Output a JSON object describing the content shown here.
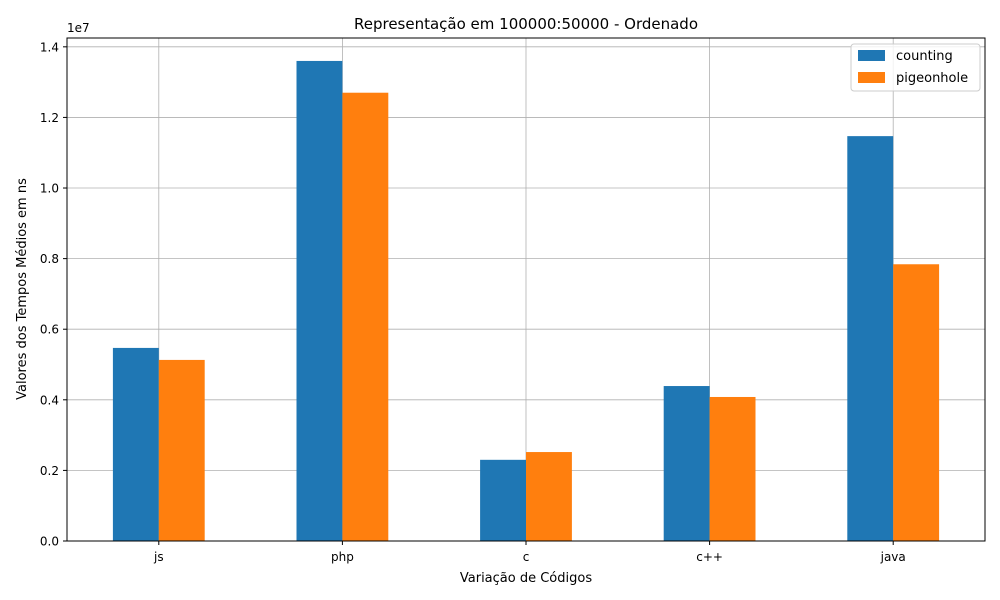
{
  "chart_data": {
    "type": "bar",
    "title": "Representação em 100000:50000 - Ordenado",
    "xlabel": "Variação de Códigos",
    "ylabel": "Valores dos Tempos Médios em ns",
    "y_multiplier_label": "1e7",
    "categories": [
      "js",
      "php",
      "c",
      "c++",
      "java"
    ],
    "series": [
      {
        "name": "counting",
        "color": "#1f77b4",
        "values": [
          5470000,
          13600000,
          2300000,
          4390000,
          11470000
        ]
      },
      {
        "name": "pigeonhole",
        "color": "#ff7f0e",
        "values": [
          5130000,
          12700000,
          2520000,
          4080000,
          7840000
        ]
      }
    ],
    "ylim": [
      0,
      14250000
    ],
    "yticks": [
      0,
      2000000,
      4000000,
      6000000,
      8000000,
      10000000,
      12000000,
      14000000
    ],
    "ytick_labels": [
      "0.0",
      "0.2",
      "0.4",
      "0.6",
      "0.8",
      "1.0",
      "1.2",
      "1.4"
    ],
    "grid": true,
    "legend_position": "top-right"
  }
}
